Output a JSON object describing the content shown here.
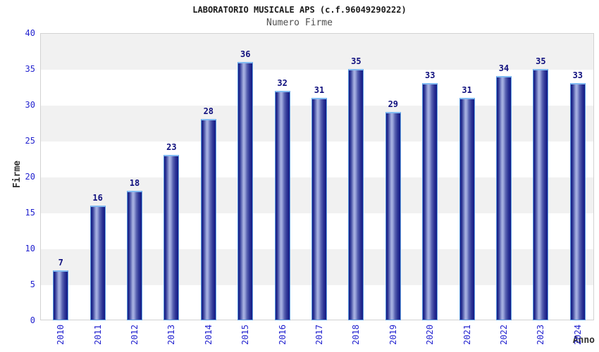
{
  "chart_data": {
    "type": "bar",
    "title": "LABORATORIO MUSICALE APS (c.f.96049290222)",
    "subtitle": "Numero Firme",
    "xlabel": "Anno",
    "ylabel": "Firme",
    "categories": [
      "2010",
      "2011",
      "2012",
      "2013",
      "2014",
      "2015",
      "2016",
      "2017",
      "2018",
      "2019",
      "2020",
      "2021",
      "2022",
      "2023",
      "2024"
    ],
    "values": [
      7,
      16,
      18,
      23,
      28,
      36,
      32,
      31,
      35,
      29,
      33,
      31,
      34,
      35,
      33
    ],
    "ylim": [
      0,
      40
    ],
    "ytick_step": 5,
    "grid": "horizontal-bands-alternating",
    "legend": "none",
    "bar_value_labels": true,
    "colors": {
      "bar_dark": "#131a85",
      "bar_highlight": "#aab4e3",
      "bar_border": "#5f9ddf",
      "tick_label": "#2323cf",
      "value_label": "#10107e",
      "band_gray": "#f1f1f1",
      "band_white": "#ffffff",
      "plot_border": "#d2d2d2",
      "title_color": "#1a1a1a",
      "subtitle_color": "#4f4f4f",
      "axis_title_color": "#333333"
    }
  }
}
